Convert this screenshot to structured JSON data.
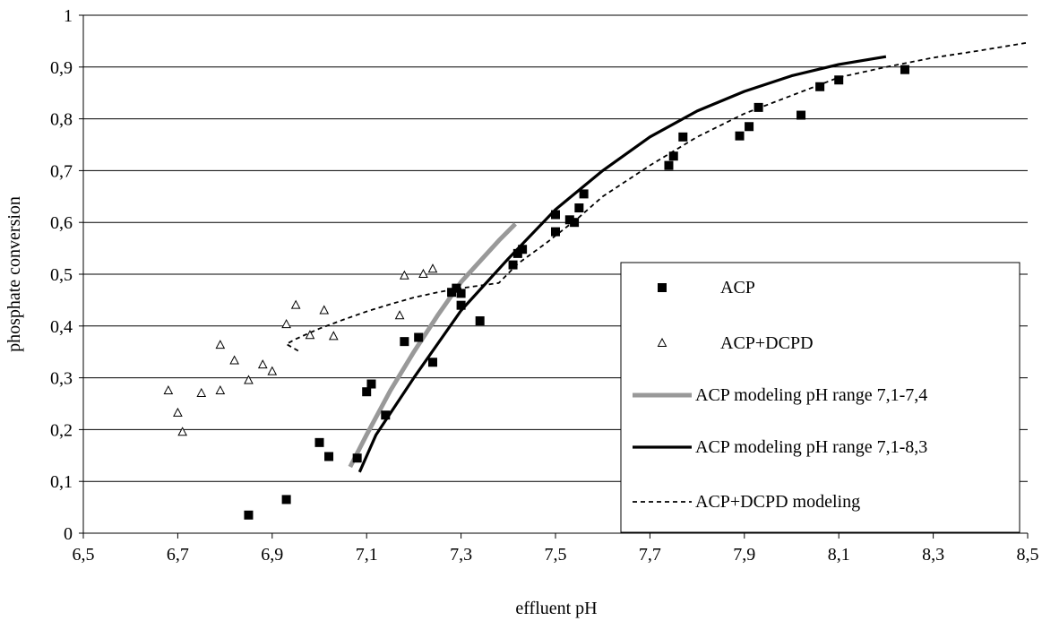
{
  "chart_data": {
    "type": "scatter",
    "xlabel": "effluent pH",
    "ylabel": "phosphate conversion",
    "xlim": [
      6.5,
      8.5
    ],
    "ylim": [
      0,
      1
    ],
    "x_ticks": [
      "6,5",
      "6,7",
      "6,9",
      "7,1",
      "7,3",
      "7,5",
      "7,7",
      "7,9",
      "8,1",
      "8,3",
      "8,5"
    ],
    "y_ticks": [
      "0",
      "0,1",
      "0,2",
      "0,3",
      "0,4",
      "0,5",
      "0,6",
      "0,7",
      "0,8",
      "0,9",
      "1"
    ],
    "grid": "horizontal",
    "legend_position": "bottom-right",
    "series": [
      {
        "name": "ACP",
        "kind": "points",
        "marker": "filled-square",
        "color": "#000000",
        "points": [
          [
            6.85,
            0.035
          ],
          [
            6.93,
            0.065
          ],
          [
            7.0,
            0.175
          ],
          [
            7.02,
            0.148
          ],
          [
            7.08,
            0.145
          ],
          [
            7.1,
            0.273
          ],
          [
            7.11,
            0.288
          ],
          [
            7.14,
            0.228
          ],
          [
            7.18,
            0.37
          ],
          [
            7.21,
            0.378
          ],
          [
            7.24,
            0.33
          ],
          [
            7.28,
            0.465
          ],
          [
            7.29,
            0.473
          ],
          [
            7.3,
            0.44
          ],
          [
            7.3,
            0.463
          ],
          [
            7.34,
            0.41
          ],
          [
            7.41,
            0.518
          ],
          [
            7.42,
            0.54
          ],
          [
            7.43,
            0.548
          ],
          [
            7.5,
            0.582
          ],
          [
            7.5,
            0.615
          ],
          [
            7.53,
            0.605
          ],
          [
            7.54,
            0.6
          ],
          [
            7.55,
            0.628
          ],
          [
            7.56,
            0.655
          ],
          [
            7.74,
            0.71
          ],
          [
            7.75,
            0.728
          ],
          [
            7.77,
            0.765
          ],
          [
            7.89,
            0.767
          ],
          [
            7.91,
            0.785
          ],
          [
            7.93,
            0.822
          ],
          [
            8.02,
            0.807
          ],
          [
            8.06,
            0.862
          ],
          [
            8.1,
            0.875
          ],
          [
            8.24,
            0.895
          ]
        ]
      },
      {
        "name": "ACP+DCPD",
        "kind": "points",
        "marker": "open-triangle",
        "color": "#000000",
        "points": [
          [
            6.68,
            0.275
          ],
          [
            6.7,
            0.232
          ],
          [
            6.71,
            0.195
          ],
          [
            6.75,
            0.27
          ],
          [
            6.79,
            0.363
          ],
          [
            6.79,
            0.275
          ],
          [
            6.82,
            0.333
          ],
          [
            6.85,
            0.295
          ],
          [
            6.88,
            0.325
          ],
          [
            6.9,
            0.312
          ],
          [
            6.93,
            0.403
          ],
          [
            6.95,
            0.44
          ],
          [
            6.98,
            0.382
          ],
          [
            7.01,
            0.43
          ],
          [
            7.03,
            0.38
          ],
          [
            7.17,
            0.42
          ],
          [
            7.18,
            0.497
          ],
          [
            7.22,
            0.5
          ],
          [
            7.24,
            0.51
          ]
        ]
      },
      {
        "name": "ACP modeling pH range 7,1-7,4",
        "kind": "line",
        "style": "thick-gray",
        "color": "#999999",
        "points": [
          [
            7.065,
            0.128
          ],
          [
            7.1,
            0.19
          ],
          [
            7.15,
            0.275
          ],
          [
            7.2,
            0.35
          ],
          [
            7.25,
            0.42
          ],
          [
            7.3,
            0.485
          ],
          [
            7.35,
            0.535
          ],
          [
            7.38,
            0.565
          ],
          [
            7.415,
            0.597
          ]
        ]
      },
      {
        "name": "ACP modeling pH range 7,1-8,3",
        "kind": "line",
        "style": "thick-solid",
        "color": "#000000",
        "points": [
          [
            7.085,
            0.118
          ],
          [
            7.12,
            0.19
          ],
          [
            7.2,
            0.3
          ],
          [
            7.3,
            0.43
          ],
          [
            7.4,
            0.53
          ],
          [
            7.5,
            0.625
          ],
          [
            7.6,
            0.7
          ],
          [
            7.7,
            0.765
          ],
          [
            7.8,
            0.815
          ],
          [
            7.9,
            0.853
          ],
          [
            8.0,
            0.883
          ],
          [
            8.1,
            0.905
          ],
          [
            8.2,
            0.92
          ]
        ]
      },
      {
        "name": "ACP+DCPD modeling",
        "kind": "line",
        "style": "dashed",
        "color": "#000000",
        "points": [
          [
            6.955,
            0.352
          ],
          [
            6.93,
            0.365
          ],
          [
            6.95,
            0.375
          ],
          [
            7.0,
            0.395
          ],
          [
            7.05,
            0.412
          ],
          [
            7.1,
            0.428
          ],
          [
            7.15,
            0.442
          ],
          [
            7.2,
            0.455
          ],
          [
            7.25,
            0.465
          ],
          [
            7.3,
            0.473
          ],
          [
            7.38,
            0.483
          ],
          [
            7.42,
            0.52
          ],
          [
            7.48,
            0.56
          ],
          [
            7.55,
            0.61
          ],
          [
            7.6,
            0.65
          ],
          [
            7.7,
            0.71
          ],
          [
            7.8,
            0.765
          ],
          [
            7.9,
            0.81
          ],
          [
            8.0,
            0.845
          ],
          [
            8.1,
            0.88
          ],
          [
            8.2,
            0.9
          ],
          [
            8.3,
            0.918
          ],
          [
            8.4,
            0.932
          ],
          [
            8.5,
            0.947
          ]
        ]
      }
    ]
  }
}
